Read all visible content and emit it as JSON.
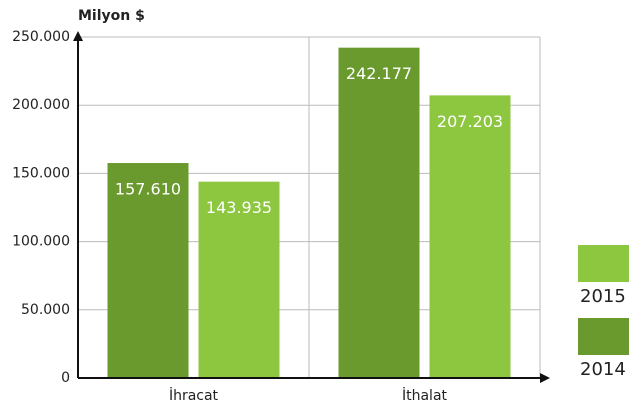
{
  "chart_data": {
    "type": "bar",
    "y_label": "Milyon $",
    "categories": [
      "İhracat",
      "İthalat"
    ],
    "series": [
      {
        "name": "2014",
        "color": "#6a9a2e",
        "values": [
          157610,
          242177
        ],
        "value_labels": [
          "157.610",
          "242.177"
        ]
      },
      {
        "name": "2015",
        "color": "#8dc63f",
        "values": [
          143935,
          207203
        ],
        "value_labels": [
          "143.935",
          "207.203"
        ]
      }
    ],
    "ylim": [
      0,
      250000
    ],
    "yticks": [
      0,
      {
        "value": 50000,
        "label": "50.000"
      },
      {
        "value": 100000,
        "label": "100.000"
      },
      {
        "value": 150000,
        "label": "150.000"
      },
      {
        "value": 200000,
        "label": "200.000"
      },
      {
        "value": 250000,
        "label": "250.000"
      }
    ],
    "grid": true
  }
}
